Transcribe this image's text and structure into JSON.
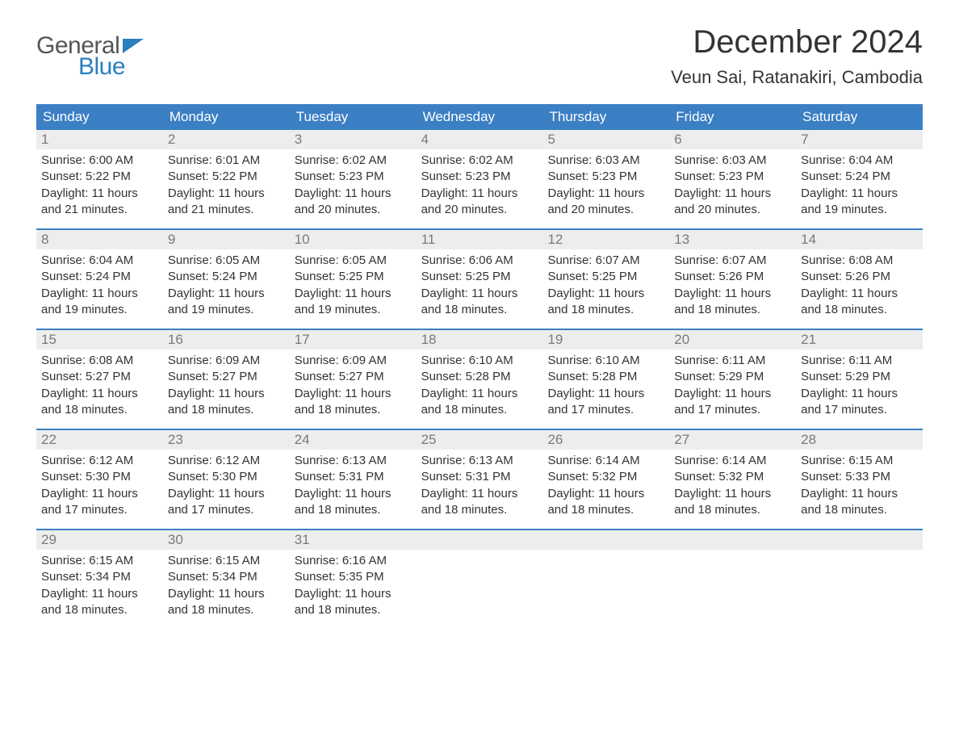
{
  "logo": {
    "general": "General",
    "blue": "Blue",
    "flag_color": "#2a7fbf"
  },
  "header": {
    "month_title": "December 2024",
    "location": "Veun Sai, Ratanakiri, Cambodia"
  },
  "colors": {
    "header_bg": "#3b7fc4",
    "header_text": "#ffffff",
    "daynum_bg": "#ededed",
    "daynum_text": "#7a7a7a",
    "body_text": "#333333",
    "rule": "#3b7fc4",
    "page_bg": "#ffffff",
    "logo_gray": "#555555",
    "logo_blue": "#2a7fbf"
  },
  "typography": {
    "title_fontsize": 40,
    "location_fontsize": 22,
    "dayheader_fontsize": 17,
    "daynum_fontsize": 17,
    "body_fontsize": 15,
    "font_family": "Arial"
  },
  "day_names": [
    "Sunday",
    "Monday",
    "Tuesday",
    "Wednesday",
    "Thursday",
    "Friday",
    "Saturday"
  ],
  "weeks": [
    [
      {
        "num": "1",
        "sunrise": "Sunrise: 6:00 AM",
        "sunset": "Sunset: 5:22 PM",
        "day1": "Daylight: 11 hours",
        "day2": "and 21 minutes."
      },
      {
        "num": "2",
        "sunrise": "Sunrise: 6:01 AM",
        "sunset": "Sunset: 5:22 PM",
        "day1": "Daylight: 11 hours",
        "day2": "and 21 minutes."
      },
      {
        "num": "3",
        "sunrise": "Sunrise: 6:02 AM",
        "sunset": "Sunset: 5:23 PM",
        "day1": "Daylight: 11 hours",
        "day2": "and 20 minutes."
      },
      {
        "num": "4",
        "sunrise": "Sunrise: 6:02 AM",
        "sunset": "Sunset: 5:23 PM",
        "day1": "Daylight: 11 hours",
        "day2": "and 20 minutes."
      },
      {
        "num": "5",
        "sunrise": "Sunrise: 6:03 AM",
        "sunset": "Sunset: 5:23 PM",
        "day1": "Daylight: 11 hours",
        "day2": "and 20 minutes."
      },
      {
        "num": "6",
        "sunrise": "Sunrise: 6:03 AM",
        "sunset": "Sunset: 5:23 PM",
        "day1": "Daylight: 11 hours",
        "day2": "and 20 minutes."
      },
      {
        "num": "7",
        "sunrise": "Sunrise: 6:04 AM",
        "sunset": "Sunset: 5:24 PM",
        "day1": "Daylight: 11 hours",
        "day2": "and 19 minutes."
      }
    ],
    [
      {
        "num": "8",
        "sunrise": "Sunrise: 6:04 AM",
        "sunset": "Sunset: 5:24 PM",
        "day1": "Daylight: 11 hours",
        "day2": "and 19 minutes."
      },
      {
        "num": "9",
        "sunrise": "Sunrise: 6:05 AM",
        "sunset": "Sunset: 5:24 PM",
        "day1": "Daylight: 11 hours",
        "day2": "and 19 minutes."
      },
      {
        "num": "10",
        "sunrise": "Sunrise: 6:05 AM",
        "sunset": "Sunset: 5:25 PM",
        "day1": "Daylight: 11 hours",
        "day2": "and 19 minutes."
      },
      {
        "num": "11",
        "sunrise": "Sunrise: 6:06 AM",
        "sunset": "Sunset: 5:25 PM",
        "day1": "Daylight: 11 hours",
        "day2": "and 18 minutes."
      },
      {
        "num": "12",
        "sunrise": "Sunrise: 6:07 AM",
        "sunset": "Sunset: 5:25 PM",
        "day1": "Daylight: 11 hours",
        "day2": "and 18 minutes."
      },
      {
        "num": "13",
        "sunrise": "Sunrise: 6:07 AM",
        "sunset": "Sunset: 5:26 PM",
        "day1": "Daylight: 11 hours",
        "day2": "and 18 minutes."
      },
      {
        "num": "14",
        "sunrise": "Sunrise: 6:08 AM",
        "sunset": "Sunset: 5:26 PM",
        "day1": "Daylight: 11 hours",
        "day2": "and 18 minutes."
      }
    ],
    [
      {
        "num": "15",
        "sunrise": "Sunrise: 6:08 AM",
        "sunset": "Sunset: 5:27 PM",
        "day1": "Daylight: 11 hours",
        "day2": "and 18 minutes."
      },
      {
        "num": "16",
        "sunrise": "Sunrise: 6:09 AM",
        "sunset": "Sunset: 5:27 PM",
        "day1": "Daylight: 11 hours",
        "day2": "and 18 minutes."
      },
      {
        "num": "17",
        "sunrise": "Sunrise: 6:09 AM",
        "sunset": "Sunset: 5:27 PM",
        "day1": "Daylight: 11 hours",
        "day2": "and 18 minutes."
      },
      {
        "num": "18",
        "sunrise": "Sunrise: 6:10 AM",
        "sunset": "Sunset: 5:28 PM",
        "day1": "Daylight: 11 hours",
        "day2": "and 18 minutes."
      },
      {
        "num": "19",
        "sunrise": "Sunrise: 6:10 AM",
        "sunset": "Sunset: 5:28 PM",
        "day1": "Daylight: 11 hours",
        "day2": "and 17 minutes."
      },
      {
        "num": "20",
        "sunrise": "Sunrise: 6:11 AM",
        "sunset": "Sunset: 5:29 PM",
        "day1": "Daylight: 11 hours",
        "day2": "and 17 minutes."
      },
      {
        "num": "21",
        "sunrise": "Sunrise: 6:11 AM",
        "sunset": "Sunset: 5:29 PM",
        "day1": "Daylight: 11 hours",
        "day2": "and 17 minutes."
      }
    ],
    [
      {
        "num": "22",
        "sunrise": "Sunrise: 6:12 AM",
        "sunset": "Sunset: 5:30 PM",
        "day1": "Daylight: 11 hours",
        "day2": "and 17 minutes."
      },
      {
        "num": "23",
        "sunrise": "Sunrise: 6:12 AM",
        "sunset": "Sunset: 5:30 PM",
        "day1": "Daylight: 11 hours",
        "day2": "and 17 minutes."
      },
      {
        "num": "24",
        "sunrise": "Sunrise: 6:13 AM",
        "sunset": "Sunset: 5:31 PM",
        "day1": "Daylight: 11 hours",
        "day2": "and 18 minutes."
      },
      {
        "num": "25",
        "sunrise": "Sunrise: 6:13 AM",
        "sunset": "Sunset: 5:31 PM",
        "day1": "Daylight: 11 hours",
        "day2": "and 18 minutes."
      },
      {
        "num": "26",
        "sunrise": "Sunrise: 6:14 AM",
        "sunset": "Sunset: 5:32 PM",
        "day1": "Daylight: 11 hours",
        "day2": "and 18 minutes."
      },
      {
        "num": "27",
        "sunrise": "Sunrise: 6:14 AM",
        "sunset": "Sunset: 5:32 PM",
        "day1": "Daylight: 11 hours",
        "day2": "and 18 minutes."
      },
      {
        "num": "28",
        "sunrise": "Sunrise: 6:15 AM",
        "sunset": "Sunset: 5:33 PM",
        "day1": "Daylight: 11 hours",
        "day2": "and 18 minutes."
      }
    ],
    [
      {
        "num": "29",
        "sunrise": "Sunrise: 6:15 AM",
        "sunset": "Sunset: 5:34 PM",
        "day1": "Daylight: 11 hours",
        "day2": "and 18 minutes."
      },
      {
        "num": "30",
        "sunrise": "Sunrise: 6:15 AM",
        "sunset": "Sunset: 5:34 PM",
        "day1": "Daylight: 11 hours",
        "day2": "and 18 minutes."
      },
      {
        "num": "31",
        "sunrise": "Sunrise: 6:16 AM",
        "sunset": "Sunset: 5:35 PM",
        "day1": "Daylight: 11 hours",
        "day2": "and 18 minutes."
      },
      null,
      null,
      null,
      null
    ]
  ]
}
